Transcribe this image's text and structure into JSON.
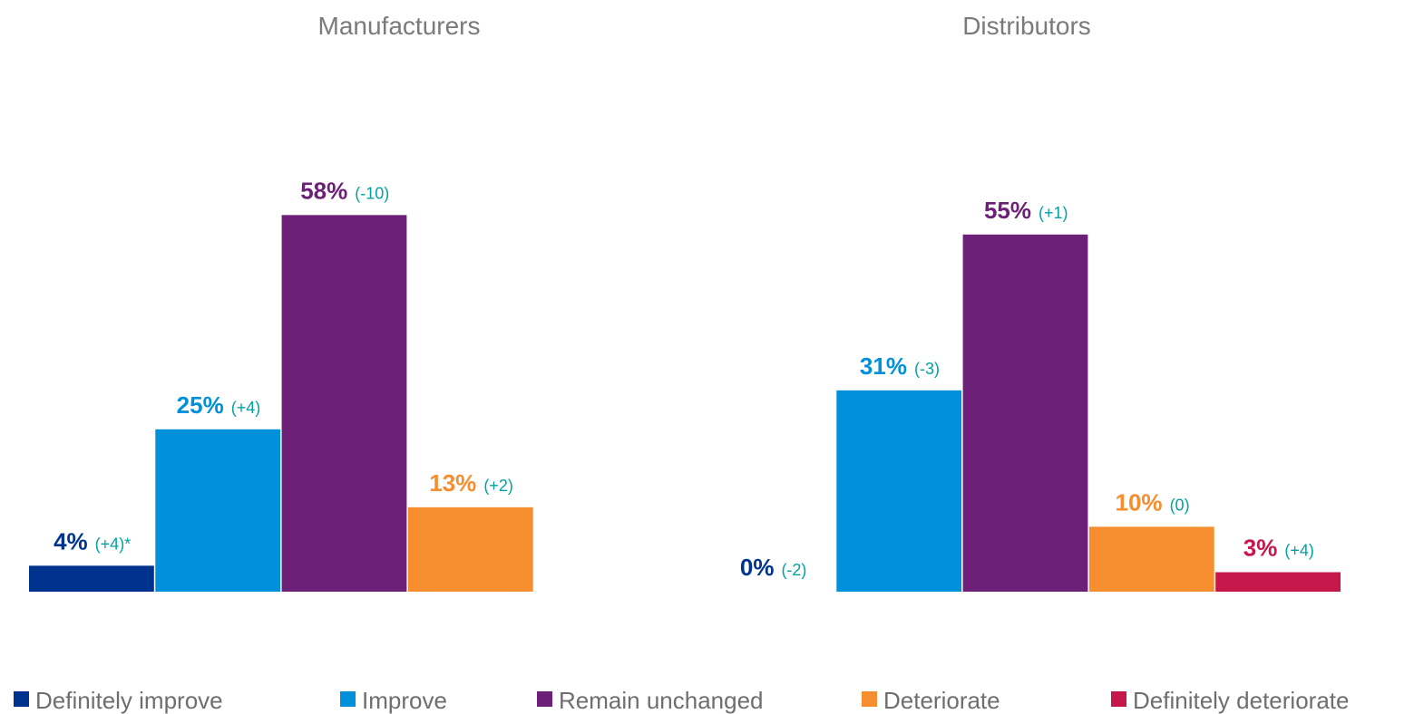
{
  "legend": [
    {
      "name": "Definitely improve",
      "color": "#00338d"
    },
    {
      "name": "Improve",
      "color": "#0091da"
    },
    {
      "name": "Remain unchanged",
      "color": "#6d2077"
    },
    {
      "name": "Deteriorate",
      "color": "#f68d2e"
    },
    {
      "name": "Definitely deteriorate",
      "color": "#c6174a"
    }
  ],
  "chart_data": [
    {
      "type": "bar",
      "title": "Manufacturers",
      "values": [
        4,
        25,
        58,
        13,
        null
      ],
      "value_labels": [
        "4%",
        "25%",
        "58%",
        "13%",
        null
      ],
      "changes": [
        "(+4)*",
        "(+4)",
        "(-10)",
        "(+2)",
        null
      ],
      "ylim": [
        0,
        60
      ]
    },
    {
      "type": "bar",
      "title": "Distributors",
      "values": [
        0,
        31,
        55,
        10,
        3
      ],
      "value_labels": [
        "0%",
        "31%",
        "55%",
        "10%",
        "3%"
      ],
      "changes": [
        "(-2)",
        "(-3)",
        "(+1)",
        "(0)",
        "(+4)"
      ],
      "ylim": [
        0,
        60
      ]
    }
  ]
}
